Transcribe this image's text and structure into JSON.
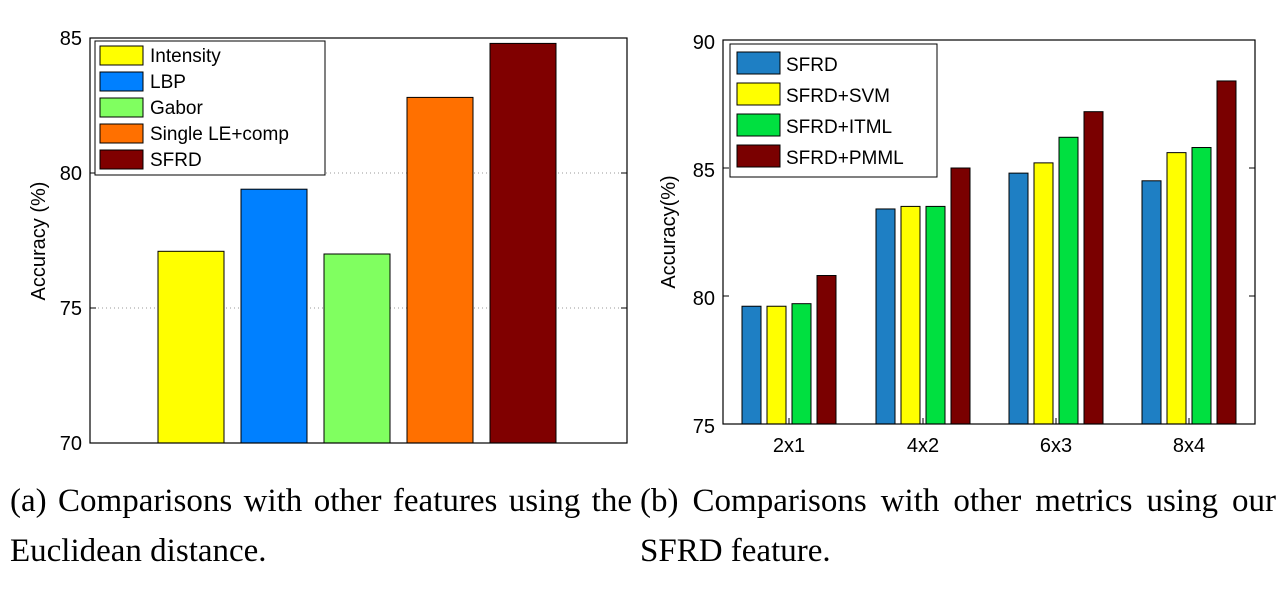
{
  "chart_data": [
    {
      "type": "bar",
      "ylabel": "Accuracy (%)",
      "xlabel": "",
      "ylim": [
        70,
        85
      ],
      "yticks": [
        "70",
        "75",
        "80",
        "85"
      ],
      "grid": "horizontal dotted",
      "legend_position": "top-left",
      "categories": [
        "Intensity",
        "LBP",
        "Gabor",
        "Single LE+comp",
        "SFRD"
      ],
      "values": [
        77.1,
        79.4,
        77.0,
        82.8,
        84.8
      ],
      "colors": [
        "#ffff00",
        "#0080ff",
        "#80ff60",
        "#ff7000",
        "#800000"
      ]
    },
    {
      "type": "bar",
      "ylabel": "Accuracy(%)",
      "xlabel": "",
      "ylim": [
        75,
        90
      ],
      "yticks": [
        "75",
        "80",
        "85",
        "90"
      ],
      "grid": "none",
      "legend_position": "top-left",
      "categories": [
        "2x1",
        "4x2",
        "6x3",
        "8x4"
      ],
      "series": [
        {
          "name": "SFRD",
          "color": "#1e7fc4",
          "values": [
            79.6,
            83.4,
            84.8,
            84.5
          ]
        },
        {
          "name": "SFRD+SVM",
          "color": "#ffff00",
          "values": [
            79.6,
            83.5,
            85.2,
            85.6
          ]
        },
        {
          "name": "SFRD+ITML",
          "color": "#00e040",
          "values": [
            79.7,
            83.5,
            86.2,
            85.8
          ]
        },
        {
          "name": "SFRD+PMML",
          "color": "#7a0000",
          "values": [
            80.8,
            85.0,
            87.2,
            88.4
          ]
        }
      ]
    }
  ],
  "captions": {
    "a": "(a) Comparisons with other features using the Euclidean distance.",
    "b": "(b) Comparisons with other metrics using our SFRD feature."
  }
}
